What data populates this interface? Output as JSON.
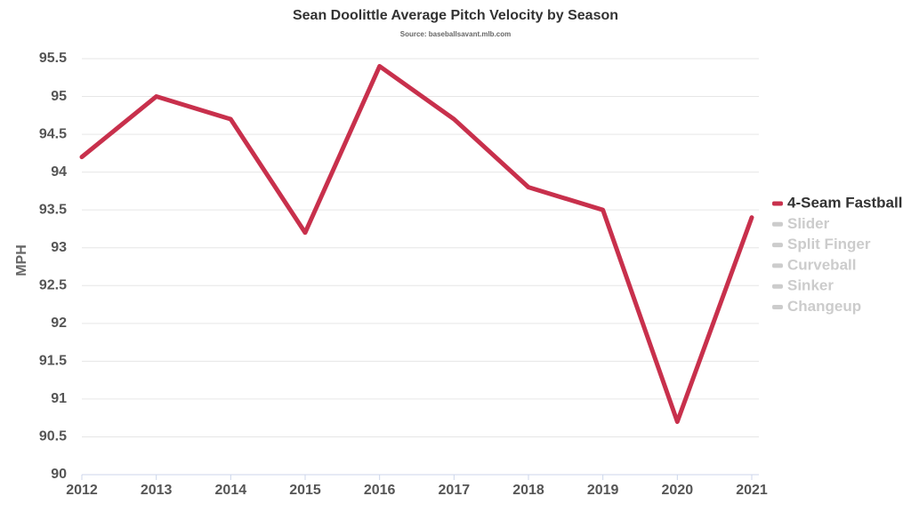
{
  "chart_data": {
    "type": "line",
    "title": "Sean Doolittle Average Pitch Velocity by Season",
    "subtitle": "Source: baseballsavant.mlb.com",
    "y_label": "MPH",
    "x": [
      2012,
      2013,
      2014,
      2015,
      2016,
      2017,
      2018,
      2019,
      2020,
      2021
    ],
    "xlim": [
      2012,
      2021
    ],
    "xticks": [
      2012,
      2013,
      2014,
      2015,
      2016,
      2017,
      2018,
      2019,
      2020,
      2021
    ],
    "ylim": [
      90,
      95.5
    ],
    "yticks": [
      90,
      90.5,
      91,
      91.5,
      92,
      92.5,
      93,
      93.5,
      94,
      94.5,
      95,
      95.5
    ],
    "grid": true,
    "legend": "right",
    "series": [
      {
        "name": "4-Seam Fastball",
        "color": "#c8304c",
        "visible": true,
        "values": [
          94.2,
          95.0,
          94.7,
          93.2,
          95.4,
          94.7,
          93.8,
          93.5,
          90.7,
          93.4
        ]
      },
      {
        "name": "Slider",
        "color": "#cccccc",
        "visible": false,
        "values": [
          null,
          null,
          null,
          null,
          null,
          null,
          null,
          null,
          null,
          null
        ]
      },
      {
        "name": "Split Finger",
        "color": "#cccccc",
        "visible": false,
        "values": [
          null,
          null,
          null,
          null,
          null,
          null,
          null,
          null,
          null,
          null
        ]
      },
      {
        "name": "Curveball",
        "color": "#cccccc",
        "visible": false,
        "values": [
          null,
          null,
          null,
          null,
          null,
          null,
          null,
          null,
          null,
          null
        ]
      },
      {
        "name": "Sinker",
        "color": "#cccccc",
        "visible": false,
        "values": [
          null,
          null,
          null,
          null,
          null,
          null,
          null,
          null,
          null,
          null
        ]
      },
      {
        "name": "Changeup",
        "color": "#cccccc",
        "visible": false,
        "values": [
          null,
          null,
          null,
          null,
          null,
          null,
          null,
          null,
          null,
          null
        ]
      }
    ]
  }
}
